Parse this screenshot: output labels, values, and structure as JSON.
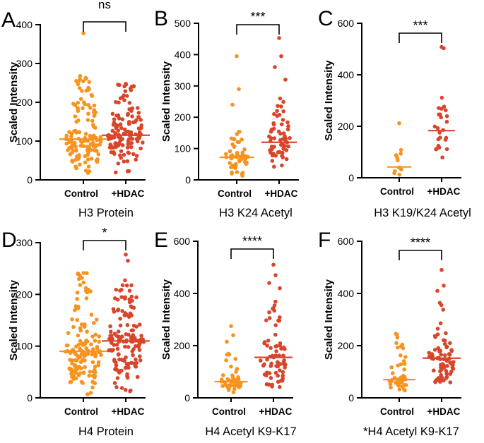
{
  "colors": {
    "control": "#F7931E",
    "hdac": "#D9452B"
  },
  "chart_data": [
    {
      "panel": "A",
      "type": "scatter",
      "title": "H3 Protein",
      "ylabel": "Scaled Intensity",
      "categories": [
        "Control",
        "+HDAC"
      ],
      "ylim": [
        0,
        400
      ],
      "yticks": [
        0,
        100,
        200,
        300,
        400
      ],
      "yticklabels": [
        "0",
        "100",
        "200",
        "300",
        "400"
      ],
      "significance": "ns",
      "series": [
        {
          "name": "Control",
          "median": 105,
          "n": 130,
          "min": 10,
          "max": 270,
          "outliers": [
            378
          ]
        },
        {
          "name": "+HDAC",
          "median": 115,
          "n": 130,
          "min": 12,
          "max": 250,
          "outliers": []
        }
      ]
    },
    {
      "panel": "B",
      "type": "scatter",
      "title": "H3 K24 Acetyl",
      "ylabel": "Scaled Intensity",
      "categories": [
        "Control",
        "+HDAC"
      ],
      "ylim": [
        0,
        500
      ],
      "yticks": [
        0,
        100,
        200,
        300,
        400,
        500
      ],
      "yticklabels": [
        "0",
        "100",
        "200",
        "300",
        "400",
        "500"
      ],
      "significance": "***",
      "series": [
        {
          "name": "Control",
          "median": 72,
          "n": 55,
          "min": 5,
          "max": 160,
          "outliers": [
            395,
            290,
            240
          ]
        },
        {
          "name": "+HDAC",
          "median": 120,
          "n": 60,
          "min": 10,
          "max": 270,
          "outliers": [
            453,
            395,
            360,
            320
          ]
        }
      ]
    },
    {
      "panel": "C",
      "type": "scatter",
      "title": "H3 K19/K24 Acetyl",
      "ylabel": "Scaled Intensity",
      "categories": [
        "Control",
        "+HDAC"
      ],
      "ylim": [
        0,
        600
      ],
      "yticks": [
        0,
        200,
        400,
        600
      ],
      "yticklabels": [
        "0",
        "200",
        "400",
        "600"
      ],
      "significance": "***",
      "series": [
        {
          "name": "Control",
          "median": 42,
          "n": 12,
          "min": 5,
          "max": 120,
          "outliers": [
            212
          ]
        },
        {
          "name": "+HDAC",
          "median": 183,
          "n": 24,
          "min": 55,
          "max": 320,
          "outliers": [
            508,
            503
          ]
        }
      ]
    },
    {
      "panel": "D",
      "type": "scatter",
      "title": "H4 Protein",
      "ylabel": "Scaled Intensity",
      "categories": [
        "Control",
        "+HDAC"
      ],
      "ylim": [
        0,
        300
      ],
      "yticks": [
        0,
        100,
        200,
        300
      ],
      "yticklabels": [
        "0",
        "100",
        "200",
        "300"
      ],
      "significance": "*",
      "series": [
        {
          "name": "Control",
          "median": 90,
          "n": 140,
          "min": 5,
          "max": 250,
          "outliers": []
        },
        {
          "name": "+HDAC",
          "median": 110,
          "n": 140,
          "min": 5,
          "max": 230,
          "outliers": [
            277,
            265
          ]
        }
      ]
    },
    {
      "panel": "E",
      "type": "scatter",
      "title": "H4 Acetyl K9-K17",
      "ylabel": "Scaled Intensity",
      "categories": [
        "Control",
        "+HDAC"
      ],
      "ylim": [
        0,
        600
      ],
      "yticks": [
        0,
        200,
        400,
        600
      ],
      "yticklabels": [
        "0",
        "200",
        "400",
        "600"
      ],
      "significance": "****",
      "series": [
        {
          "name": "Control",
          "median": 62,
          "n": 50,
          "min": 20,
          "max": 190,
          "outliers": [
            275,
            240,
            215
          ]
        },
        {
          "name": "+HDAC",
          "median": 155,
          "n": 70,
          "min": 10,
          "max": 370,
          "outliers": [
            510,
            470,
            440,
            420
          ]
        }
      ]
    },
    {
      "panel": "F",
      "type": "scatter",
      "title": "*H4 Acetyl K9-K17",
      "ylabel": "Scaled Intensity",
      "categories": [
        "Control",
        "+HDAC"
      ],
      "ylim": [
        0,
        600
      ],
      "yticks": [
        0,
        200,
        400,
        600
      ],
      "yticklabels": [
        "0",
        "200",
        "400",
        "600"
      ],
      "significance": "****",
      "series": [
        {
          "name": "Control",
          "median": 70,
          "n": 45,
          "min": 15,
          "max": 250,
          "outliers": []
        },
        {
          "name": "+HDAC",
          "median": 152,
          "n": 70,
          "min": 10,
          "max": 380,
          "outliers": [
            490,
            430,
            410
          ]
        }
      ]
    }
  ]
}
